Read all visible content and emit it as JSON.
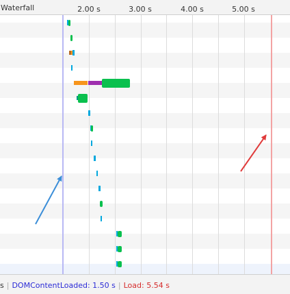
{
  "header": {
    "title": "Waterfall",
    "ticks": [
      "2.00 s",
      "3.00 s",
      "4.00 s",
      "5.00 s"
    ]
  },
  "footer": {
    "lead": "s",
    "separator": "|",
    "dcl_label": "DOMContentLoaded: 1.50 s",
    "load_label": "Load: 5.54 s"
  },
  "timeline": {
    "dom_content_loaded_s": 1.5,
    "load_s": 5.54
  },
  "colors": {
    "dcl_marker": "#b8b8f4",
    "load_marker": "#f3a3a3",
    "arrow_dcl": "#3b8ed8",
    "arrow_load": "#e03b3b",
    "waiting": "#00a8de",
    "download": "#0ac04e",
    "stalled": "#f7951c",
    "ssl": "#9f2fae"
  },
  "requests": [
    {
      "start_s": 1.57,
      "segments": [
        {
          "type": "wait",
          "dur_s": 0.03
        },
        {
          "type": "dl",
          "dur_s": 0.04
        }
      ]
    },
    {
      "start_s": 1.64,
      "segments": [
        {
          "type": "dl",
          "dur_s": 0.04
        }
      ]
    },
    {
      "start_s": 1.62,
      "segments": [
        {
          "type": "ofs",
          "dur_s": 0.03
        },
        {
          "type": "stall",
          "dur_s": 0.03
        },
        {
          "type": "wait",
          "dur_s": 0.04
        }
      ]
    },
    {
      "start_s": 1.65,
      "segments": [
        {
          "type": "wait",
          "dur_s": 0.03
        }
      ]
    },
    {
      "start_s": 1.71,
      "segments": [
        {
          "type": "stall",
          "dur_s": 0.27
        },
        {
          "type": "ssl",
          "dur_s": 0.27
        },
        {
          "type": "dl",
          "dur_s": 0.55
        }
      ]
    },
    {
      "start_s": 1.76,
      "segments": [
        {
          "type": "dns",
          "dur_s": 0.03
        },
        {
          "type": "dl",
          "dur_s": 0.18
        }
      ]
    },
    {
      "start_s": 1.98,
      "segments": [
        {
          "type": "wait",
          "dur_s": 0.04
        }
      ]
    },
    {
      "start_s": 2.02,
      "segments": [
        {
          "type": "wait",
          "dur_s": 0.02
        },
        {
          "type": "dl",
          "dur_s": 0.04
        }
      ]
    },
    {
      "start_s": 2.04,
      "segments": [
        {
          "type": "wait",
          "dur_s": 0.03
        }
      ]
    },
    {
      "start_s": 2.09,
      "segments": [
        {
          "type": "wait",
          "dur_s": 0.04
        }
      ]
    },
    {
      "start_s": 2.14,
      "segments": [
        {
          "type": "wait",
          "dur_s": 0.03
        }
      ]
    },
    {
      "start_s": 2.18,
      "segments": [
        {
          "type": "wait",
          "dur_s": 0.04
        }
      ]
    },
    {
      "start_s": 2.21,
      "segments": [
        {
          "type": "dl",
          "dur_s": 0.05
        }
      ]
    },
    {
      "start_s": 2.22,
      "segments": [
        {
          "type": "wait",
          "dur_s": 0.03
        }
      ]
    },
    {
      "start_s": 2.53,
      "segments": [
        {
          "type": "wait",
          "dur_s": 0.02
        },
        {
          "type": "dl",
          "dur_s": 0.08
        }
      ]
    },
    {
      "start_s": 2.53,
      "segments": [
        {
          "type": "wait",
          "dur_s": 0.02
        },
        {
          "type": "dl",
          "dur_s": 0.08
        }
      ]
    },
    {
      "start_s": 2.53,
      "segments": [
        {
          "type": "wait",
          "dur_s": 0.02
        },
        {
          "type": "dl",
          "dur_s": 0.09
        }
      ]
    }
  ]
}
